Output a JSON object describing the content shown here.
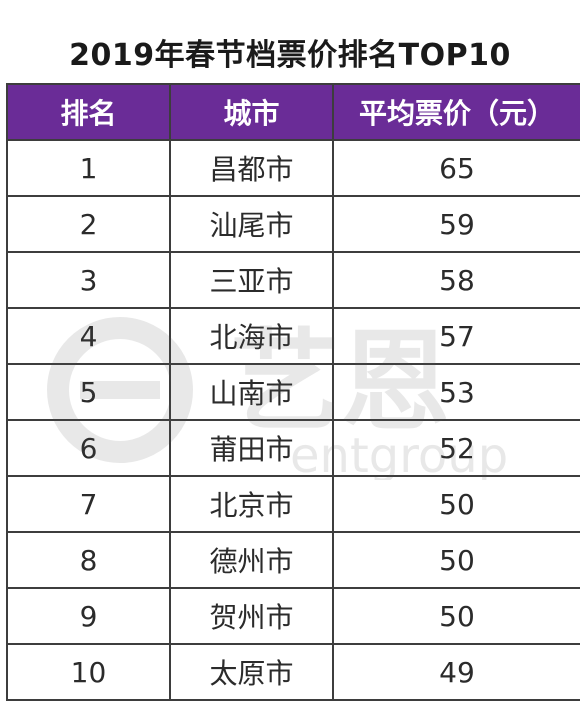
{
  "title": "2019年春节档票价排名TOP10",
  "headers": [
    "排名",
    "城市",
    "平均票价（元）"
  ],
  "rows": [
    {
      "rank": "1",
      "city": "昌都市",
      "price": "65"
    },
    {
      "rank": "2",
      "city": "汕尾市",
      "price": "59"
    },
    {
      "rank": "3",
      "city": "三亚市",
      "price": "58"
    },
    {
      "rank": "4",
      "city": "北海市",
      "price": "57"
    },
    {
      "rank": "5",
      "city": "山南市",
      "price": "53"
    },
    {
      "rank": "6",
      "city": "莆田市",
      "price": "52"
    },
    {
      "rank": "7",
      "city": "北京市",
      "price": "50"
    },
    {
      "rank": "8",
      "city": "德州市",
      "price": "50"
    },
    {
      "rank": "9",
      "city": "贺州市",
      "price": "50"
    },
    {
      "rank": "10",
      "city": "太原市",
      "price": "49"
    }
  ],
  "watermark": {
    "logo_text": "艺恩",
    "sub_text": "entgroup"
  },
  "colors": {
    "header_bg": "#6a2c97",
    "header_text": "#ffffff",
    "border": "#3d3d3d"
  }
}
